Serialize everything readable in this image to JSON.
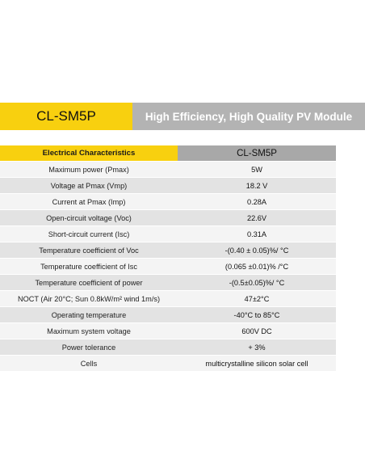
{
  "header": {
    "model": "CL-SM5P",
    "title": "High Efficiency, High Quality PV Module"
  },
  "table": {
    "header_param": "Electrical Characteristics",
    "header_value": "CL-SM5P",
    "rows": [
      {
        "param": "Maximum power (Pmax)",
        "value": "5W"
      },
      {
        "param": "Voltage at Pmax (Vmp)",
        "value": "18.2 V"
      },
      {
        "param": "Current at Pmax (Imp)",
        "value": "0.28A"
      },
      {
        "param": "Open-circuit voltage (Voc)",
        "value": "22.6V"
      },
      {
        "param": "Short-circuit current (Isc)",
        "value": "0.31A"
      },
      {
        "param": "Temperature coefficient of Voc",
        "value": "-(0.40 ± 0.05)%/ °C"
      },
      {
        "param": "Temperature coefficient of Isc",
        "value": "(0.065 ±0.01)% /°C"
      },
      {
        "param": "Temperature coefficient of power",
        "value": "-(0.5±0.05)%/ °C"
      },
      {
        "param": "NOCT (Air 20°C; Sun 0.8kW/m² wind 1m/s)",
        "value": "47±2°C"
      },
      {
        "param": "Operating temperature",
        "value": "-40°C to 85°C"
      },
      {
        "param": "Maximum system voltage",
        "value": "600V DC"
      },
      {
        "param": "Power tolerance",
        "value": "+ 3%"
      },
      {
        "param": "Cells",
        "value": "multicrystalline silicon solar cell"
      }
    ]
  },
  "colors": {
    "accent_yellow": "#f8d00f",
    "header_gray": "#b3b3b3",
    "row_light": "#f4f4f4",
    "row_dark": "#e3e3e3"
  }
}
